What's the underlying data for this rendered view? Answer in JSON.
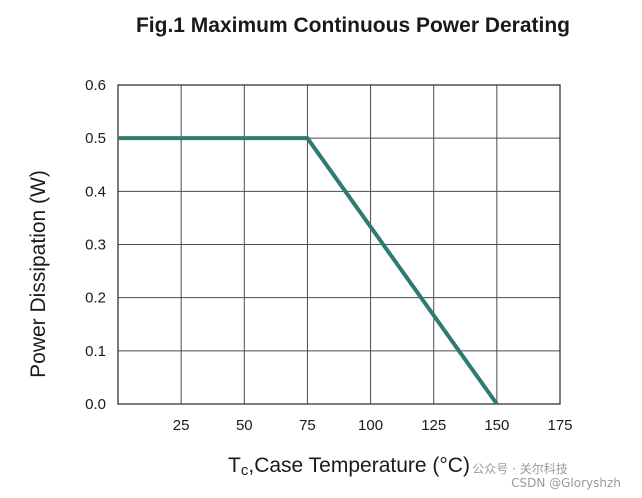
{
  "chart_data": {
    "type": "line",
    "title": "Fig.1  Maximum Continuous Power Derating",
    "xlabel": "Tc,Case Temperature (°C)",
    "xlabel_main": "T",
    "xlabel_sub": "c",
    "xlabel_rest": ",Case Temperature (°C)",
    "ylabel": "Power Dissipation (W)",
    "xlim": [
      0,
      175
    ],
    "ylim": [
      0,
      0.6
    ],
    "x_ticks": [
      25,
      50,
      75,
      100,
      125,
      150,
      175
    ],
    "x_tick_labels": [
      "25",
      "50",
      "75",
      "100",
      "125",
      "150",
      "175"
    ],
    "y_ticks": [
      0,
      0.1,
      0.2,
      0.3,
      0.4,
      0.5,
      0.6
    ],
    "y_tick_labels": [
      "0.0",
      "0.1",
      "0.2",
      "0.3",
      "0.4",
      "0.5",
      "0.6"
    ],
    "grid": true,
    "legend": "none",
    "series": [
      {
        "x": [
          0,
          75,
          150
        ],
        "y": [
          0.5,
          0.5,
          0
        ]
      }
    ],
    "colors": {
      "line": "#2e7b72",
      "grid": "#4a4a4a",
      "frame": "#333333",
      "text": "#1a1a1a"
    }
  },
  "watermark": {
    "line1": "公众号 · 关尔科技",
    "line2": "CSDN @Gloryshzh"
  }
}
